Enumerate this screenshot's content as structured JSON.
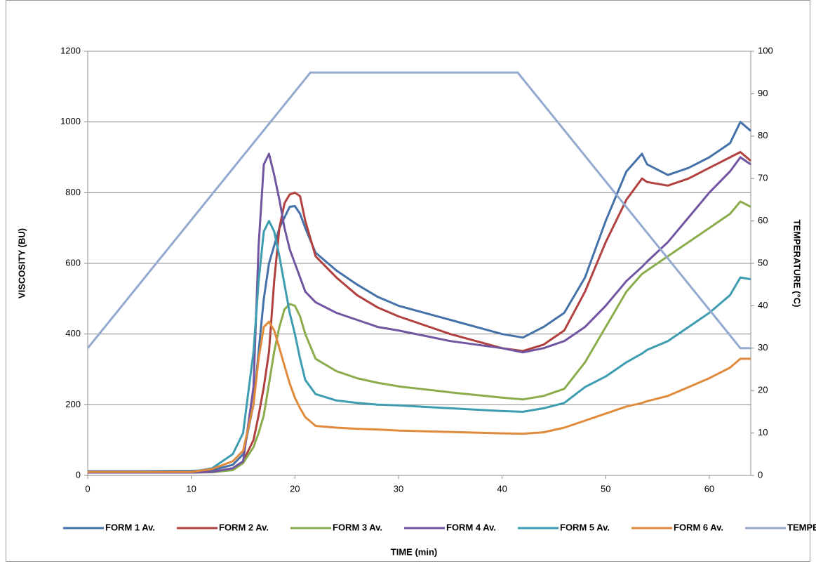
{
  "chart_data": {
    "type": "line",
    "x_label": "TIME (min)",
    "y_label": "VISCOSITY (BU)",
    "y2_label": "TEMPERATURE (°C)",
    "xlim": [
      0,
      64
    ],
    "xticks": [
      0,
      10,
      20,
      30,
      40,
      50,
      60
    ],
    "ylim": [
      0,
      1200
    ],
    "yticks": [
      0,
      200,
      400,
      600,
      800,
      1000,
      1200
    ],
    "y2lim": [
      0,
      100
    ],
    "y2ticks": [
      0,
      10,
      20,
      30,
      40,
      50,
      60,
      70,
      80,
      90,
      100
    ],
    "grid": true,
    "legend": "bottom",
    "x": [
      0,
      5,
      10,
      12,
      14,
      15,
      16,
      16.5,
      17,
      17.5,
      18,
      18.5,
      19,
      19.5,
      20,
      20.5,
      21,
      22,
      24,
      26,
      28,
      30,
      35,
      40,
      42,
      44,
      46,
      48,
      50,
      52,
      53.5,
      54,
      56,
      58,
      60,
      62,
      63,
      64
    ],
    "series": [
      {
        "name": "FORM 1 Av.",
        "color": "#4472a8",
        "values": [
          12,
          12,
          13,
          15,
          30,
          60,
          200,
          350,
          500,
          600,
          650,
          700,
          730,
          760,
          762,
          740,
          700,
          630,
          580,
          540,
          505,
          480,
          440,
          400,
          390,
          420,
          460,
          560,
          720,
          860,
          910,
          880,
          850,
          870,
          900,
          940,
          1000,
          975
        ]
      },
      {
        "name": "FORM 2 Av.",
        "color": "#b0413e",
        "values": [
          8,
          8,
          9,
          10,
          20,
          40,
          100,
          170,
          250,
          350,
          550,
          700,
          770,
          795,
          800,
          790,
          720,
          620,
          560,
          510,
          475,
          450,
          400,
          360,
          352,
          370,
          410,
          520,
          660,
          780,
          840,
          830,
          820,
          840,
          870,
          900,
          915,
          890
        ]
      },
      {
        "name": "FORM 3 Av.",
        "color": "#8bac4c",
        "values": [
          8,
          8,
          8,
          9,
          15,
          35,
          80,
          120,
          170,
          260,
          350,
          420,
          470,
          485,
          480,
          450,
          400,
          330,
          295,
          275,
          262,
          252,
          235,
          220,
          215,
          225,
          245,
          320,
          420,
          520,
          570,
          580,
          620,
          660,
          700,
          740,
          775,
          760
        ]
      },
      {
        "name": "FORM 4 Av.",
        "color": "#7155a0",
        "values": [
          8,
          8,
          8,
          10,
          20,
          40,
          250,
          650,
          880,
          910,
          850,
          780,
          700,
          640,
          600,
          560,
          520,
          490,
          460,
          440,
          420,
          410,
          380,
          360,
          348,
          360,
          380,
          420,
          480,
          550,
          590,
          605,
          660,
          730,
          800,
          860,
          900,
          880
        ]
      },
      {
        "name": "FORM 5 Av.",
        "color": "#3e9cb0",
        "values": [
          10,
          10,
          10,
          20,
          60,
          120,
          350,
          550,
          690,
          720,
          690,
          620,
          540,
          460,
          400,
          330,
          270,
          230,
          212,
          205,
          200,
          198,
          190,
          182,
          180,
          190,
          205,
          250,
          280,
          320,
          345,
          355,
          380,
          420,
          460,
          510,
          560,
          555
        ]
      },
      {
        "name": "FORM 6 Av.",
        "color": "#e08a3c",
        "values": [
          10,
          10,
          10,
          18,
          40,
          70,
          200,
          330,
          420,
          435,
          410,
          360,
          310,
          260,
          220,
          190,
          165,
          140,
          135,
          132,
          130,
          127,
          123,
          119,
          118,
          122,
          135,
          155,
          175,
          195,
          205,
          210,
          225,
          250,
          275,
          305,
          330,
          330
        ]
      },
      {
        "name": "TEMPERATURE",
        "color": "#94a9cf",
        "axis": "y2",
        "x": [
          0,
          21.5,
          41.5,
          63,
          64
        ],
        "values": [
          30,
          95,
          95,
          30,
          30
        ]
      }
    ]
  }
}
